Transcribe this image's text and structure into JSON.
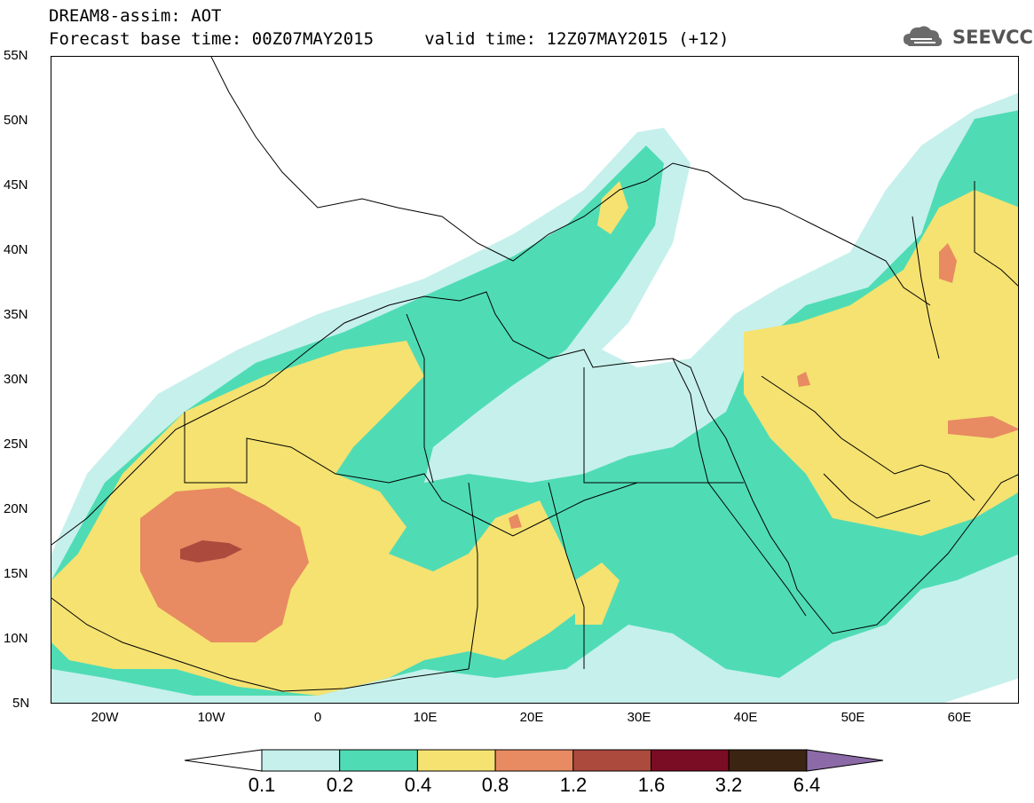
{
  "header": {
    "title_line1": "DREAM8-assim: AOT",
    "title_line2": "Forecast base time: 00Z07MAY2015     valid time: 12Z07MAY2015 (+12)",
    "logo_text": "SEEVCCC"
  },
  "map": {
    "lat_labels": [
      "55N",
      "50N",
      "45N",
      "40N",
      "35N",
      "30N",
      "25N",
      "20N",
      "15N",
      "10N",
      "5N"
    ],
    "lon_labels": [
      "20W",
      "10W",
      "0",
      "10E",
      "20E",
      "30E",
      "40E",
      "50E",
      "60E"
    ],
    "colors": {
      "c01": "#c6f0ec",
      "c02": "#4fdcb4",
      "c04": "#f5e271",
      "c08": "#e88a62",
      "c12": "#ad4a3e",
      "c16": "#7a0c24",
      "c32": "#3b2412",
      "c64": "#8c6aa8",
      "coast": "#000000"
    }
  },
  "colorbar": {
    "levels": [
      "0.1",
      "0.2",
      "0.4",
      "0.8",
      "1.2",
      "1.6",
      "3.2",
      "6.4"
    ],
    "colors": [
      "#c6f0ec",
      "#4fdcb4",
      "#f5e271",
      "#e88a62",
      "#ad4a3e",
      "#7a0c24",
      "#3b2412"
    ],
    "under_color": "#ffffff",
    "over_color": "#8c6aa8"
  }
}
